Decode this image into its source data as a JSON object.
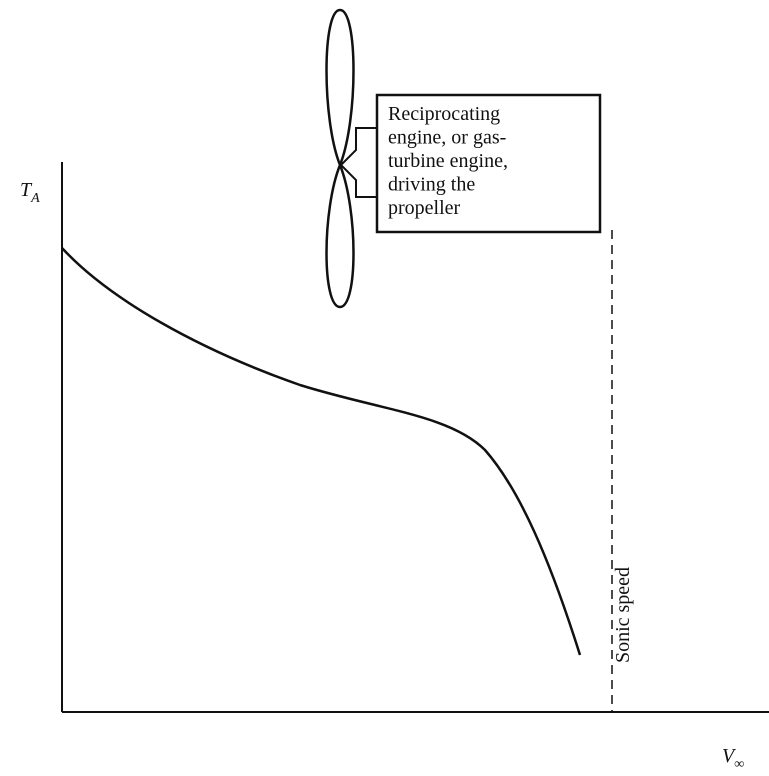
{
  "diagram": {
    "y_label": {
      "main": "T",
      "sub": "A"
    },
    "x_label": {
      "main": "V",
      "sub": "∞"
    },
    "engine_box": {
      "lines": [
        "Reciprocating",
        "engine, or gas-",
        "turbine engine,",
        "driving the",
        "propeller"
      ]
    },
    "limit_label": "Sonic speed"
  }
}
